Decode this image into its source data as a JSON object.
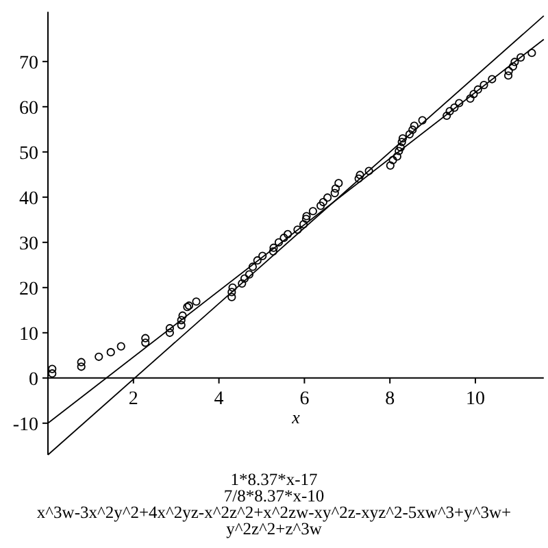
{
  "chart_data": {
    "type": "scatter",
    "xlabel": "x",
    "xlim": [
      0,
      11.6
    ],
    "ylim": [
      -17,
      81
    ],
    "xticks": [
      2,
      4,
      6,
      8,
      10
    ],
    "yticks": [
      -10,
      0,
      10,
      20,
      30,
      40,
      50,
      60,
      70
    ],
    "grid": false,
    "marker": "circle",
    "series": [
      {
        "color": "#000000",
        "x": [
          0.1,
          0.1,
          0.78,
          0.78,
          1.19,
          1.47,
          1.71,
          2.28,
          2.28,
          2.85,
          2.85,
          3.12,
          3.12,
          3.15,
          3.26,
          3.3,
          3.47,
          4.3,
          4.3,
          4.32,
          4.54,
          4.6,
          4.71,
          4.79,
          4.9,
          5.02,
          5.27,
          5.28,
          5.4,
          5.52,
          5.61,
          5.84,
          5.98,
          6.04,
          6.05,
          6.2,
          6.38,
          6.44,
          6.54,
          6.71,
          6.73,
          6.8,
          7.27,
          7.3,
          7.51,
          8.01,
          8.07,
          8.17,
          8.21,
          8.25,
          8.28,
          8.3,
          8.46,
          8.53,
          8.57,
          8.76,
          9.33,
          9.4,
          9.51,
          9.62,
          9.88,
          9.96,
          10.06,
          10.2,
          10.39,
          10.77,
          10.78,
          10.88,
          10.92,
          11.06,
          11.32
        ],
        "values": [
          1,
          2,
          2.5,
          3.5,
          4.7,
          5.7,
          7,
          7.8,
          8.8,
          10,
          11,
          11.7,
          12.8,
          13.8,
          15.7,
          16,
          16.9,
          17.9,
          19,
          20,
          20.9,
          22,
          22.9,
          24.6,
          26,
          27,
          28,
          28.8,
          30,
          31,
          31.8,
          32.8,
          34,
          35.2,
          35.8,
          36.9,
          38.1,
          38.9,
          39.9,
          40.9,
          41.9,
          43.1,
          44.1,
          44.9,
          45.8,
          47,
          48.2,
          49,
          50.2,
          51,
          52.2,
          53,
          53.9,
          54.9,
          55.8,
          57,
          58,
          59,
          59.8,
          60.8,
          61.8,
          62.8,
          63.8,
          64.8,
          66.1,
          66.9,
          67.9,
          68.9,
          69.9,
          70.9,
          71.9
        ]
      },
      {
        "type": "line",
        "marker": "none",
        "color": "#000000",
        "x": [
          0,
          11.6
        ],
        "values": [
          -17,
          80.1
        ]
      },
      {
        "type": "line",
        "marker": "none",
        "color": "#000000",
        "x": [
          0,
          11.6
        ],
        "values": [
          -10,
          74.9
        ]
      }
    ],
    "annotations": [
      "1*8.37*x-17",
      "7/8*8.37*x-10",
      "x^3w-3x^2y^2+4x^2yz-x^2z^2+x^2zw-xy^2z-xyz^2-5xw^3+y^3w+y^2z^2+z^3w"
    ]
  }
}
